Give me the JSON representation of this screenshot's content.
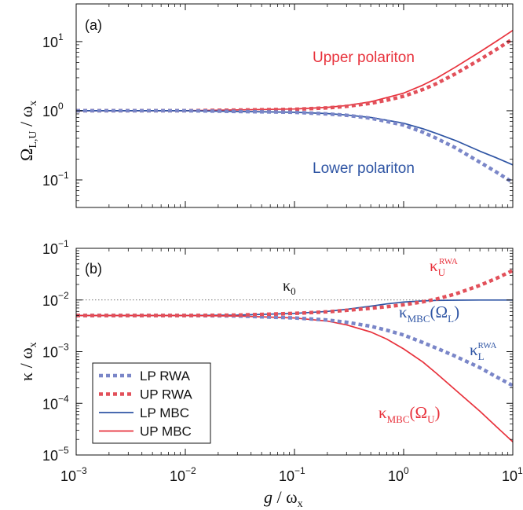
{
  "colors": {
    "lp": "#2f55a4",
    "up": "#e8323c",
    "lp_rwa": "#7a86c8",
    "up_rwa": "#e2505a",
    "axis": "#111111",
    "reference": "#444444"
  },
  "x_axis": {
    "label_main": "g",
    "label_rest": " / ω",
    "label_sub": "x",
    "scale": "log",
    "range": [
      0.001,
      10
    ],
    "ticks": [
      {
        "value": 0.001,
        "base": "10",
        "exp": "−3"
      },
      {
        "value": 0.01,
        "base": "10",
        "exp": "−2"
      },
      {
        "value": 0.1,
        "base": "10",
        "exp": "−1"
      },
      {
        "value": 1,
        "base": "10",
        "exp": "0"
      },
      {
        "value": 10,
        "base": "10",
        "exp": "1"
      }
    ]
  },
  "chart_data": [
    {
      "type": "line",
      "panel": "(a)",
      "ylabel": "Ω_{L,U} / ω_x",
      "ylabel_parts": {
        "main": "Ω",
        "sub": "L,U",
        "rest": " / ω",
        "sub2": "x"
      },
      "xscale": "log",
      "yscale": "log",
      "xlim": [
        0.001,
        10
      ],
      "ylim": [
        0.04,
        35
      ],
      "yticks": [
        {
          "value": 0.1,
          "base": "10",
          "exp": "−1"
        },
        {
          "value": 1,
          "base": "10",
          "exp": "0"
        },
        {
          "value": 10,
          "base": "10",
          "exp": "1"
        }
      ],
      "grid": false,
      "annotations": [
        {
          "text": "Upper polariton",
          "series": "up"
        },
        {
          "text": "Lower polariton",
          "series": "lp"
        }
      ],
      "x": [
        0.001,
        0.01,
        0.1,
        0.2,
        0.3,
        0.5,
        0.7,
        1,
        1.5,
        2,
        3,
        5,
        7,
        10
      ],
      "series": [
        {
          "key": "up_rwa",
          "style": "dotted",
          "values": [
            1.0,
            1.0,
            1.05,
            1.1,
            1.16,
            1.28,
            1.42,
            1.62,
            2.03,
            2.47,
            3.44,
            5.51,
            7.62,
            10.9
          ]
        },
        {
          "key": "up_mbc",
          "style": "solid",
          "values": [
            1.0,
            1.0,
            1.06,
            1.12,
            1.19,
            1.35,
            1.55,
            1.8,
            2.35,
            2.95,
            4.3,
            7.1,
            10.0,
            14.5
          ]
        },
        {
          "key": "lp_rwa",
          "style": "dotted",
          "values": [
            1.0,
            1.0,
            0.95,
            0.9,
            0.86,
            0.78,
            0.7,
            0.62,
            0.49,
            0.4,
            0.29,
            0.18,
            0.131,
            0.092
          ]
        },
        {
          "key": "lp_mbc",
          "style": "solid",
          "values": [
            1.0,
            1.0,
            0.95,
            0.91,
            0.87,
            0.8,
            0.73,
            0.66,
            0.55,
            0.47,
            0.37,
            0.26,
            0.21,
            0.165
          ]
        }
      ]
    },
    {
      "type": "line",
      "panel": "(b)",
      "ylabel": "κ / ω_x",
      "ylabel_parts": {
        "main": "κ",
        "rest": " / ω",
        "sub": "x"
      },
      "xscale": "log",
      "yscale": "log",
      "xlim": [
        0.001,
        10
      ],
      "ylim": [
        1e-05,
        0.1
      ],
      "yticks": [
        {
          "value": 1e-05,
          "base": "10",
          "exp": "−5"
        },
        {
          "value": 0.0001,
          "base": "10",
          "exp": "−4"
        },
        {
          "value": 0.001,
          "base": "10",
          "exp": "−3"
        },
        {
          "value": 0.01,
          "base": "10",
          "exp": "−2"
        },
        {
          "value": 0.1,
          "base": "10",
          "exp": "−1"
        }
      ],
      "grid": false,
      "legend_position": "bottom-left",
      "reference_line": {
        "label": "κ",
        "label_sub": "0",
        "value": 0.01
      },
      "annotations": [
        {
          "main": "κ",
          "sub": "U",
          "sup": "RWA",
          "series": "up_rwa"
        },
        {
          "main": "κ",
          "sub": "MBC",
          "rest": "(Ω",
          "sub2": "L",
          "close": ")",
          "series": "lp_mbc"
        },
        {
          "main": "κ",
          "sub": "L",
          "sup": "RWA",
          "series": "lp_rwa"
        },
        {
          "main": "κ",
          "sub": "MBC",
          "rest": "(Ω",
          "sub2": "U",
          "close": ")",
          "series": "up_mbc"
        }
      ],
      "x": [
        0.001,
        0.01,
        0.03,
        0.1,
        0.2,
        0.3,
        0.5,
        0.7,
        1,
        1.5,
        2,
        3,
        5,
        7,
        10
      ],
      "series": [
        {
          "name": "LP RWA",
          "key": "lp_rwa",
          "style": "dotted",
          "values": [
            0.005,
            0.005,
            0.0049,
            0.0045,
            0.0041,
            0.0037,
            0.0031,
            0.0026,
            0.0021,
            0.0015,
            0.00117,
            0.00081,
            0.00049,
            0.00033,
            0.00022
          ]
        },
        {
          "name": "UP RWA",
          "key": "up_rwa",
          "style": "dotted",
          "values": [
            0.005,
            0.005,
            0.0051,
            0.0055,
            0.0059,
            0.0063,
            0.0069,
            0.0074,
            0.0081,
            0.0092,
            0.0104,
            0.0131,
            0.0192,
            0.026,
            0.0372
          ]
        },
        {
          "name": "LP MBC",
          "key": "lp_mbc",
          "style": "solid",
          "values": [
            0.005,
            0.005,
            0.0051,
            0.0055,
            0.006,
            0.0066,
            0.0076,
            0.0084,
            0.0091,
            0.0096,
            0.0098,
            0.0099,
            0.01,
            0.01,
            0.01
          ]
        },
        {
          "name": "UP MBC",
          "key": "up_mbc",
          "style": "solid",
          "values": [
            0.005,
            0.005,
            0.0049,
            0.0045,
            0.0039,
            0.0033,
            0.0024,
            0.00175,
            0.00113,
            0.00063,
            0.00038,
            0.00018,
            7e-05,
            3.6e-05,
            1.8e-05
          ]
        }
      ]
    }
  ]
}
